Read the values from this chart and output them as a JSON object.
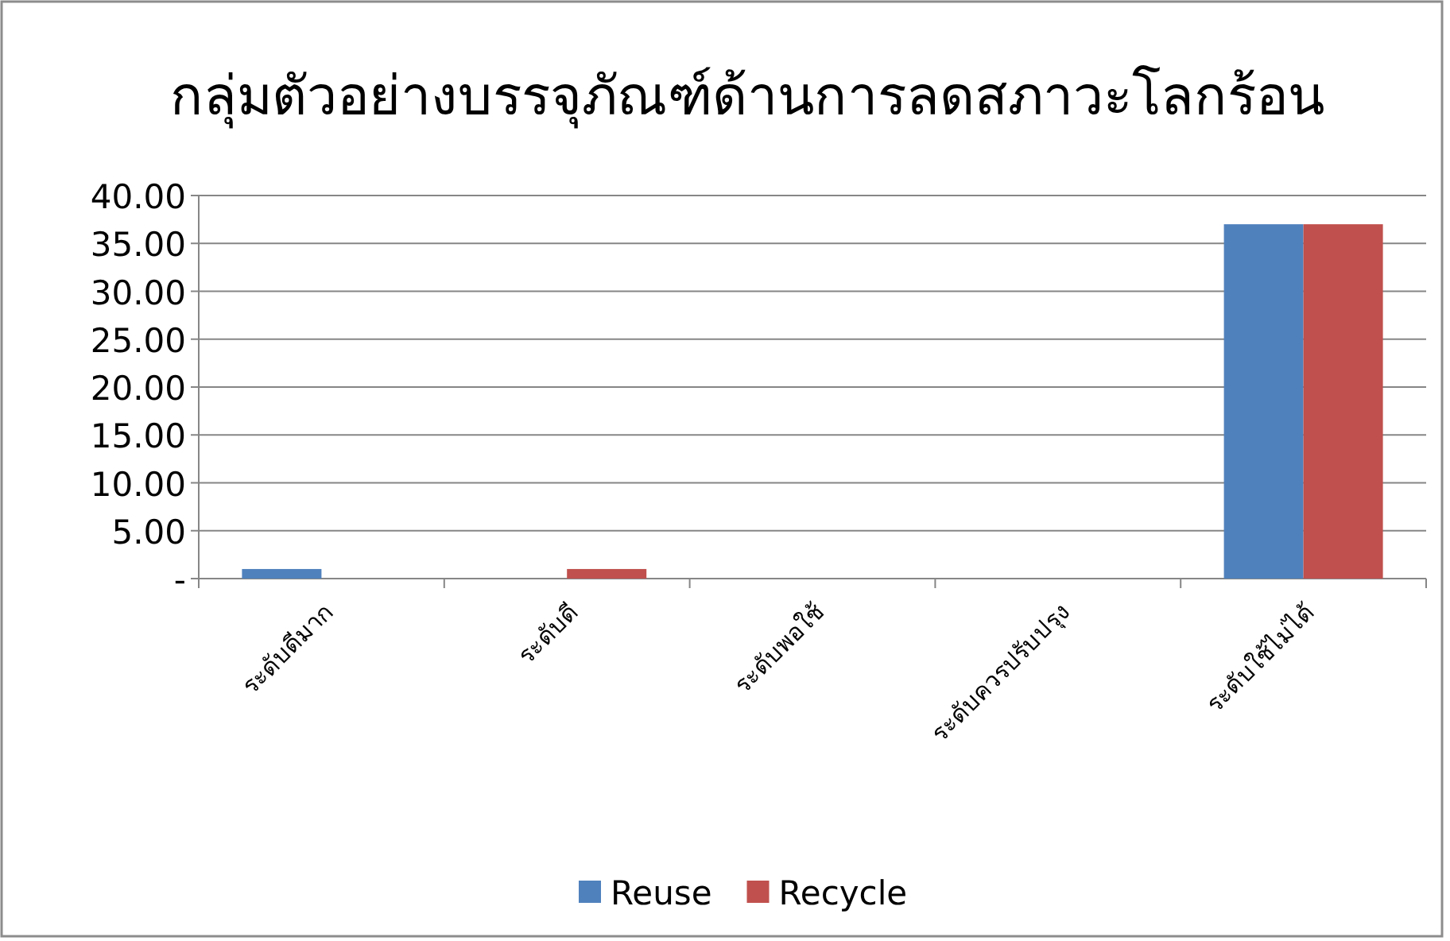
{
  "chart_data": {
    "type": "bar",
    "title": "กลุ่มตัวอย่างบรรจุภัณฑ์ด้านการลดสภาวะโลกร้อน",
    "categories": [
      "ระดับดีมาก",
      "ระดับดี",
      "ระดับพอใช้",
      "ระดับควรปรับปรุง",
      "ระดับใช้ไม่ได้"
    ],
    "series": [
      {
        "name": "Reuse",
        "color": "#4f81bd",
        "values": [
          1,
          0,
          0,
          0,
          37
        ]
      },
      {
        "name": "Recycle",
        "color": "#c0504d",
        "values": [
          0,
          1,
          0,
          0,
          37
        ]
      }
    ],
    "ylim": [
      0,
      40
    ],
    "yticks": [
      {
        "value": 0,
        "label": "-"
      },
      {
        "value": 5,
        "label": "5.00"
      },
      {
        "value": 10,
        "label": "10.00"
      },
      {
        "value": 15,
        "label": "15.00"
      },
      {
        "value": 20,
        "label": "20.00"
      },
      {
        "value": 25,
        "label": "25.00"
      },
      {
        "value": 30,
        "label": "30.00"
      },
      {
        "value": 35,
        "label": "35.00"
      },
      {
        "value": 40,
        "label": "40.00"
      }
    ],
    "grid": "y",
    "legend": "bottom"
  }
}
